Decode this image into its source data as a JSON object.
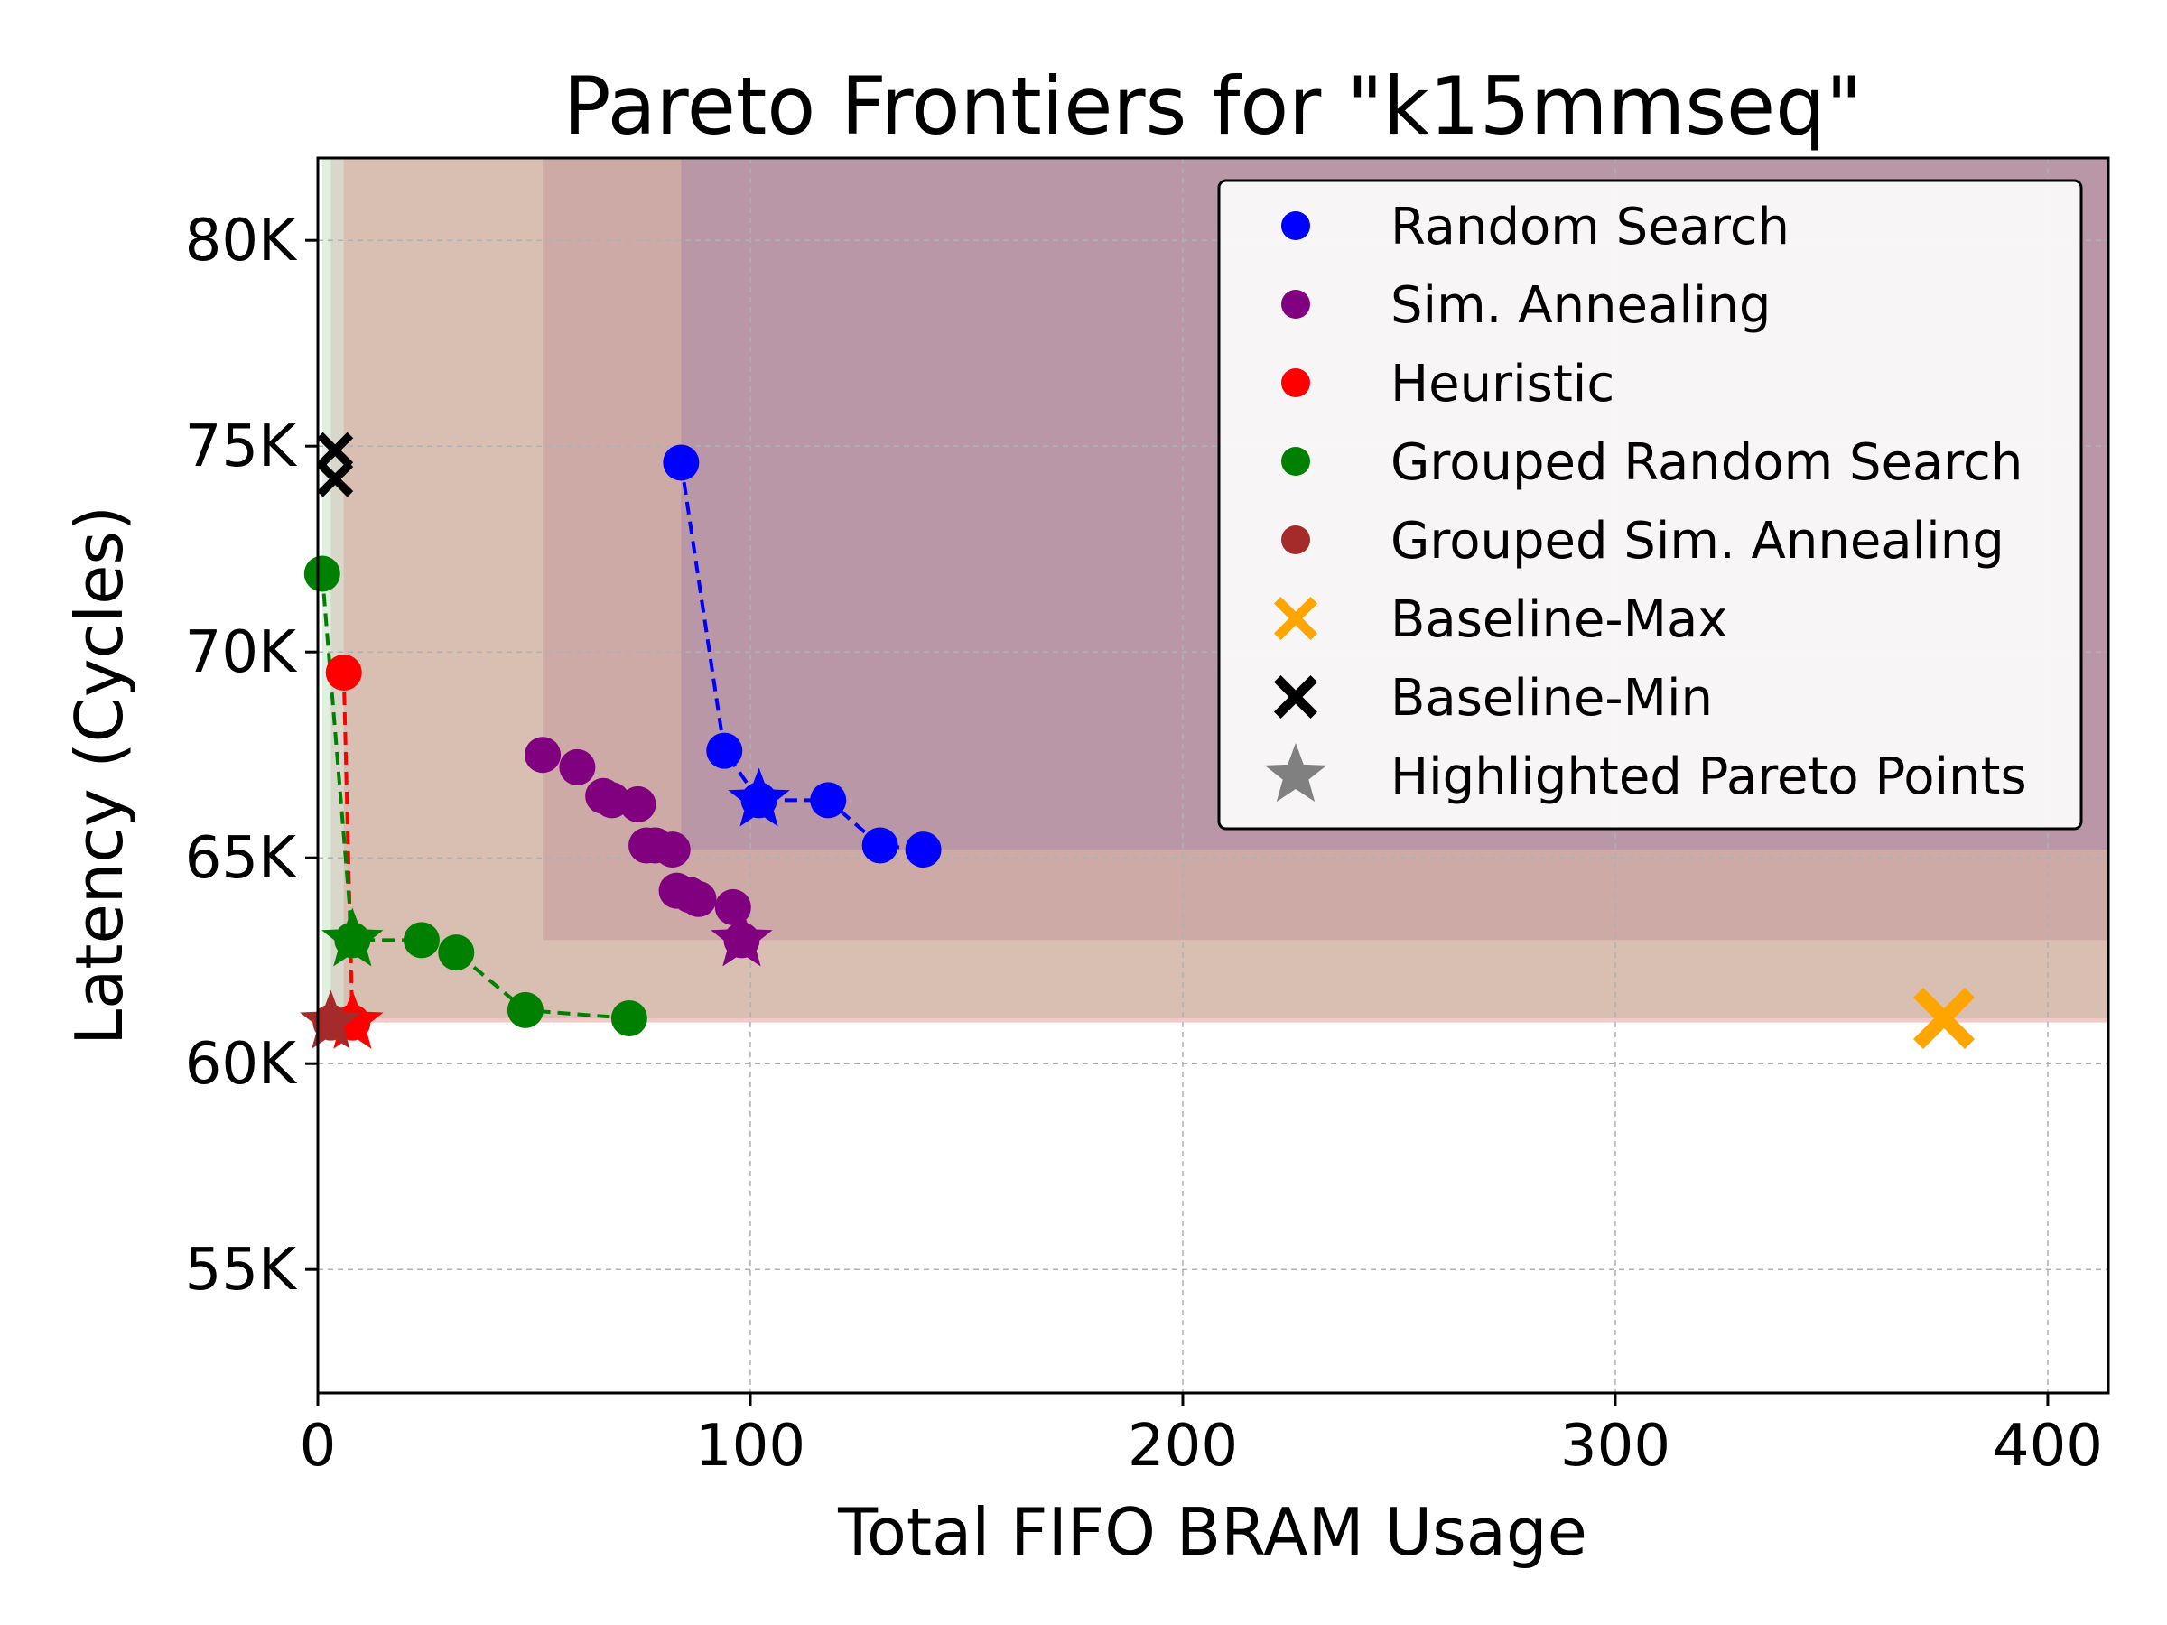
{
  "chart_data": {
    "type": "scatter",
    "title": "Pareto Frontiers for \"k15mmseq\"",
    "xlabel": "Total FIFO BRAM Usage",
    "ylabel": "Latency (Cycles)",
    "xlim": [
      0,
      414
    ],
    "ylim": [
      52000,
      82000
    ],
    "x_ticks": [
      0,
      100,
      200,
      300,
      400
    ],
    "x_tick_labels": [
      "0",
      "100",
      "200",
      "300",
      "400"
    ],
    "y_ticks": [
      55000,
      60000,
      65000,
      70000,
      75000,
      80000
    ],
    "y_tick_labels": [
      "55K",
      "60K",
      "65K",
      "70K",
      "75K",
      "80K"
    ],
    "grid": true,
    "legend_position": "top-right",
    "series": [
      {
        "name": "Random Search",
        "color": "#0000ff",
        "marker": "circle",
        "points": [
          [
            84,
            74600
          ],
          [
            94,
            67600
          ],
          [
            102,
            66400
          ],
          [
            118,
            66400
          ],
          [
            130,
            65300
          ],
          [
            140,
            65200
          ]
        ],
        "frontier": [
          [
            84,
            74600
          ],
          [
            94,
            67600
          ],
          [
            102,
            66400
          ],
          [
            118,
            66400
          ],
          [
            130,
            65300
          ],
          [
            140,
            65200
          ]
        ],
        "highlight": [
          102,
          66400
        ],
        "region_corner": [
          84,
          65200
        ]
      },
      {
        "name": "Sim. Annealing",
        "color": "#800080",
        "marker": "circle",
        "points": [
          [
            52,
            67500
          ],
          [
            60,
            67200
          ],
          [
            66,
            66500
          ],
          [
            68,
            66400
          ],
          [
            74,
            66300
          ],
          [
            76,
            65300
          ],
          [
            78,
            65300
          ],
          [
            82,
            65200
          ],
          [
            83,
            64200
          ],
          [
            86,
            64100
          ],
          [
            88,
            64000
          ],
          [
            96,
            63800
          ],
          [
            98,
            63000
          ]
        ],
        "frontier": [],
        "highlight": [
          98,
          63000
        ],
        "region_corner": [
          52,
          63000
        ]
      },
      {
        "name": "Heuristic",
        "color": "#ff0000",
        "marker": "circle",
        "points": [
          [
            6,
            69500
          ],
          [
            8,
            61000
          ]
        ],
        "frontier": [
          [
            6,
            69500
          ],
          [
            8,
            61000
          ]
        ],
        "highlight": [
          8,
          61000
        ],
        "region_corner": [
          6,
          61000
        ]
      },
      {
        "name": "Grouped Random Search",
        "color": "#008000",
        "marker": "circle",
        "points": [
          [
            1,
            71900
          ],
          [
            8,
            63000
          ],
          [
            24,
            63000
          ],
          [
            32,
            62700
          ],
          [
            48,
            61300
          ],
          [
            72,
            61100
          ]
        ],
        "frontier": [
          [
            1,
            71900
          ],
          [
            8,
            63000
          ],
          [
            24,
            63000
          ],
          [
            32,
            62700
          ],
          [
            48,
            61300
          ],
          [
            72,
            61100
          ]
        ],
        "highlight": [
          8,
          63000
        ],
        "region_corner": [
          1,
          61100
        ]
      },
      {
        "name": "Grouped Sim. Annealing",
        "color": "#a52a2a",
        "marker": "circle",
        "points": [
          [
            3,
            61000
          ]
        ],
        "frontier": [],
        "highlight": [
          3,
          61000
        ],
        "region_corner": [
          3,
          61000
        ]
      }
    ],
    "baselines": [
      {
        "name": "Baseline-Max",
        "color": "#ffa500",
        "marker": "x",
        "points": [
          [
            376,
            61100
          ]
        ]
      },
      {
        "name": "Baseline-Min",
        "color": "#000000",
        "marker": "x",
        "points": [
          [
            4,
            74900
          ],
          [
            4,
            74200
          ]
        ]
      }
    ],
    "legend": [
      {
        "label": "Random Search",
        "color": "#0000ff",
        "marker": "circle"
      },
      {
        "label": "Sim. Annealing",
        "color": "#800080",
        "marker": "circle"
      },
      {
        "label": "Heuristic",
        "color": "#ff0000",
        "marker": "circle"
      },
      {
        "label": "Grouped Random Search",
        "color": "#008000",
        "marker": "circle"
      },
      {
        "label": "Grouped Sim. Annealing",
        "color": "#a52a2a",
        "marker": "circle"
      },
      {
        "label": "Baseline-Max",
        "color": "#ffa500",
        "marker": "x"
      },
      {
        "label": "Baseline-Min",
        "color": "#000000",
        "marker": "x"
      },
      {
        "label": "Highlighted Pareto Points",
        "color": "#808080",
        "marker": "star"
      }
    ]
  }
}
